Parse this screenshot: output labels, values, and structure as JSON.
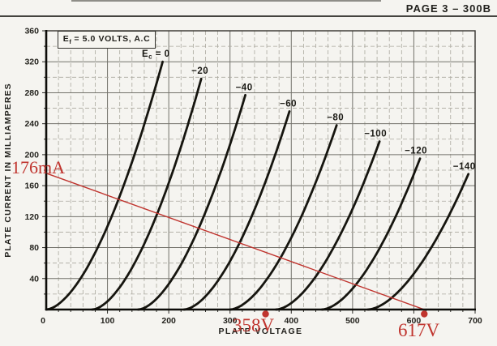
{
  "page": {
    "header": "PAGE 3 – 300B"
  },
  "annotations": {
    "color": "#c0342e",
    "load_line": {
      "from": {
        "v": 0,
        "ma": 176
      },
      "to": {
        "v": 617,
        "ma": 0
      }
    },
    "labels": [
      {
        "id": "load-line-current",
        "text": "176mA"
      },
      {
        "id": "load-line-voltage-1",
        "text": "358V"
      },
      {
        "id": "load-line-voltage-2",
        "text": "617V"
      }
    ],
    "points": [
      {
        "v": 358,
        "ma": 0
      },
      {
        "v": 617,
        "ma": 0
      }
    ]
  },
  "chart_data": {
    "type": "line",
    "description": "Triode plate characteristic curves, plate current vs plate voltage for grid voltages Ec = 0 to -140 V",
    "xlabel": "PLATE VOLTAGE",
    "ylabel": "PLATE CURRENT IN MILLIAMPERES",
    "xlim": [
      0,
      700
    ],
    "ylim": [
      0,
      360
    ],
    "x_ticks": [
      0,
      100,
      200,
      300,
      400,
      500,
      600,
      700
    ],
    "y_ticks": [
      40,
      80,
      120,
      160,
      200,
      240,
      280,
      320,
      360
    ],
    "minor_step_x": 20,
    "minor_step_y": 20,
    "grid": "on",
    "condition_label": {
      "base": "E",
      "sub": "f",
      "rest": " = 5.0 VOLTS, A.C"
    },
    "curve_exponent": 1.7,
    "series": [
      {
        "label_parts": {
          "base": "E",
          "sub": "c",
          "rest": " = 0"
        },
        "grid_voltage": 0,
        "x_intercept_v": 0,
        "top_point": {
          "v": 190,
          "ma": 320
        },
        "points": [
          [
            0,
            0
          ],
          [
            48,
            30
          ],
          [
            95,
            98
          ],
          [
            143,
            196
          ],
          [
            190,
            320
          ]
        ]
      },
      {
        "label": "−20",
        "grid_voltage": -20,
        "x_intercept_v": 75,
        "top_point": {
          "v": 253,
          "ma": 298
        },
        "points": [
          [
            75,
            0
          ],
          [
            120,
            28
          ],
          [
            164,
            92
          ],
          [
            209,
            183
          ],
          [
            253,
            298
          ]
        ]
      },
      {
        "label": "−40",
        "grid_voltage": -40,
        "x_intercept_v": 150,
        "top_point": {
          "v": 325,
          "ma": 277
        },
        "points": [
          [
            150,
            0
          ],
          [
            194,
            26
          ],
          [
            238,
            85
          ],
          [
            281,
            170
          ],
          [
            325,
            277
          ]
        ]
      },
      {
        "label": "−60",
        "grid_voltage": -60,
        "x_intercept_v": 225,
        "top_point": {
          "v": 397,
          "ma": 256
        },
        "points": [
          [
            225,
            0
          ],
          [
            268,
            24
          ],
          [
            311,
            79
          ],
          [
            354,
            157
          ],
          [
            397,
            256
          ]
        ]
      },
      {
        "label": "−80",
        "grid_voltage": -80,
        "x_intercept_v": 300,
        "top_point": {
          "v": 474,
          "ma": 238
        },
        "points": [
          [
            300,
            0
          ],
          [
            344,
            23
          ],
          [
            387,
            73
          ],
          [
            431,
            146
          ],
          [
            474,
            238
          ]
        ]
      },
      {
        "label": "−100",
        "grid_voltage": -100,
        "x_intercept_v": 375,
        "top_point": {
          "v": 544,
          "ma": 217
        },
        "points": [
          [
            375,
            0
          ],
          [
            417,
            21
          ],
          [
            460,
            67
          ],
          [
            502,
            133
          ],
          [
            544,
            217
          ]
        ]
      },
      {
        "label": "−120",
        "grid_voltage": -120,
        "x_intercept_v": 450,
        "top_point": {
          "v": 610,
          "ma": 195
        },
        "points": [
          [
            450,
            0
          ],
          [
            490,
            18
          ],
          [
            530,
            60
          ],
          [
            570,
            120
          ],
          [
            610,
            195
          ]
        ]
      },
      {
        "label": "−140",
        "grid_voltage": -140,
        "x_intercept_v": 525,
        "top_point": {
          "v": 689,
          "ma": 175
        },
        "points": [
          [
            525,
            0
          ],
          [
            566,
            17
          ],
          [
            607,
            54
          ],
          [
            648,
            107
          ],
          [
            689,
            175
          ]
        ]
      }
    ]
  }
}
